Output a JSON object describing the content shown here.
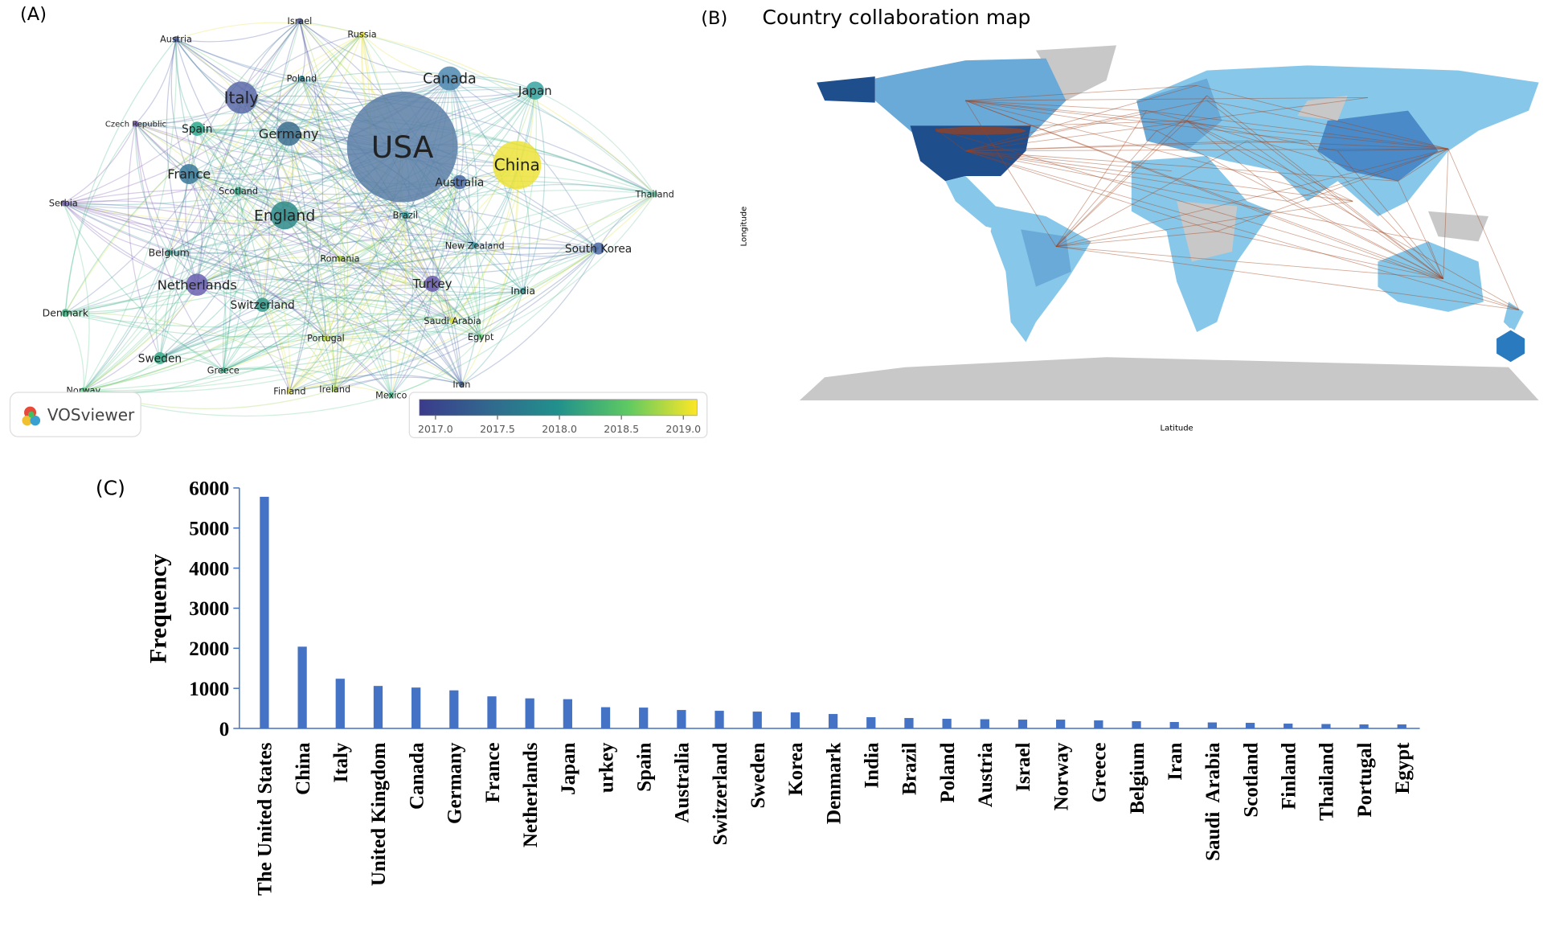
{
  "chart_data": [
    {
      "type": "network",
      "label": "(A)",
      "logo": "VOSviewer",
      "nodes": [
        {
          "label": "USA",
          "color": "#5a7ea6"
        },
        {
          "label": "China",
          "color": "#ece33a"
        },
        {
          "label": "Canada",
          "color": "#4f88b0"
        },
        {
          "label": "Italy",
          "color": "#5a6aa8"
        },
        {
          "label": "Germany",
          "color": "#3c6e8e"
        },
        {
          "label": "England",
          "color": "#2e8a88"
        },
        {
          "label": "France",
          "color": "#3a7898"
        },
        {
          "label": "Netherlands",
          "color": "#6a5fb0"
        },
        {
          "label": "Japan",
          "color": "#38a3a0"
        },
        {
          "label": "Australia",
          "color": "#4a68a6"
        },
        {
          "label": "Turkey",
          "color": "#6a5aae"
        },
        {
          "label": "Spain",
          "color": "#2ea98c"
        },
        {
          "label": "Switzerland",
          "color": "#35998a"
        },
        {
          "label": "Sweden",
          "color": "#38aa88"
        },
        {
          "label": "South Korea",
          "color": "#4a68a6"
        },
        {
          "label": "Brazil",
          "color": "#38a0a0"
        },
        {
          "label": "Scotland",
          "color": "#3ab090"
        },
        {
          "label": "India",
          "color": "#3a9ca0"
        },
        {
          "label": "Denmark",
          "color": "#42b888"
        },
        {
          "label": "Greece",
          "color": "#3ab48a"
        },
        {
          "label": "Belgium",
          "color": "#3aa090"
        },
        {
          "label": "Israel",
          "color": "#4a5aa0"
        },
        {
          "label": "Austria",
          "color": "#4a5aa6"
        },
        {
          "label": "Russia",
          "color": "#e8e040"
        },
        {
          "label": "Poland",
          "color": "#3a8a98"
        },
        {
          "label": "Czech Republic",
          "color": "#7a5aae"
        },
        {
          "label": "Serbia",
          "color": "#7a5ab0"
        },
        {
          "label": "Thailand",
          "color": "#6ac0a0"
        },
        {
          "label": "New Zealand",
          "color": "#3a98a0"
        },
        {
          "label": "Romania",
          "color": "#b8d848"
        },
        {
          "label": "Portugal",
          "color": "#c8dc40"
        },
        {
          "label": "Saudi Arabia",
          "color": "#d8e03a"
        },
        {
          "label": "Egypt",
          "color": "#6ad080"
        },
        {
          "label": "Finland",
          "color": "#e0e040"
        },
        {
          "label": "Ireland",
          "color": "#a0d050"
        },
        {
          "label": "Mexico",
          "color": "#50c090"
        },
        {
          "label": "Iran",
          "color": "#4a68a6"
        },
        {
          "label": "Norway",
          "color": "#60c890"
        }
      ],
      "colorbar": {
        "lim": [
          2016.87,
          2019.11
        ],
        "ticks": [
          {
            "value": 2017,
            "label": "2017.0"
          },
          {
            "value": 2017.5,
            "label": "2017.5"
          },
          {
            "value": 2018,
            "label": "2018.0"
          },
          {
            "value": 2018.5,
            "label": "2018.5"
          },
          {
            "value": 2019,
            "label": "2019.0"
          }
        ]
      }
    },
    {
      "type": "map",
      "label": "(B)",
      "title": "Country collaboration map",
      "xlabel": "Latitude",
      "ylabel": "Longitude"
    },
    {
      "type": "bar",
      "label": "(C)",
      "ylabel": "Frequency",
      "color": "#4472c4",
      "categories": [
        "The United States",
        "China",
        "Italy",
        "United Kingdom",
        "Canada",
        "Germany",
        "France",
        "Netherlands",
        "Japan",
        "urkey",
        "Spain",
        "Australia",
        "Switzerland",
        "Sweden",
        "Korea",
        "Denmark",
        "India",
        "Brazil",
        "Poland",
        "Austria",
        "Israel",
        "Norway",
        "Greece",
        "Belgium",
        "Iran",
        "Saudi  Arabia",
        "Scotland",
        "Finland",
        "Thailand",
        "Portugal",
        "Egypt"
      ],
      "values": [
        5780,
        2040,
        1240,
        1060,
        1020,
        950,
        800,
        750,
        730,
        530,
        520,
        460,
        440,
        420,
        400,
        360,
        280,
        260,
        240,
        230,
        220,
        220,
        200,
        180,
        160,
        150,
        140,
        120,
        110,
        100,
        100
      ],
      "ylim": [
        0,
        6000
      ],
      "yticks": [
        0,
        1000,
        2000,
        3000,
        4000,
        5000,
        6000
      ]
    }
  ]
}
